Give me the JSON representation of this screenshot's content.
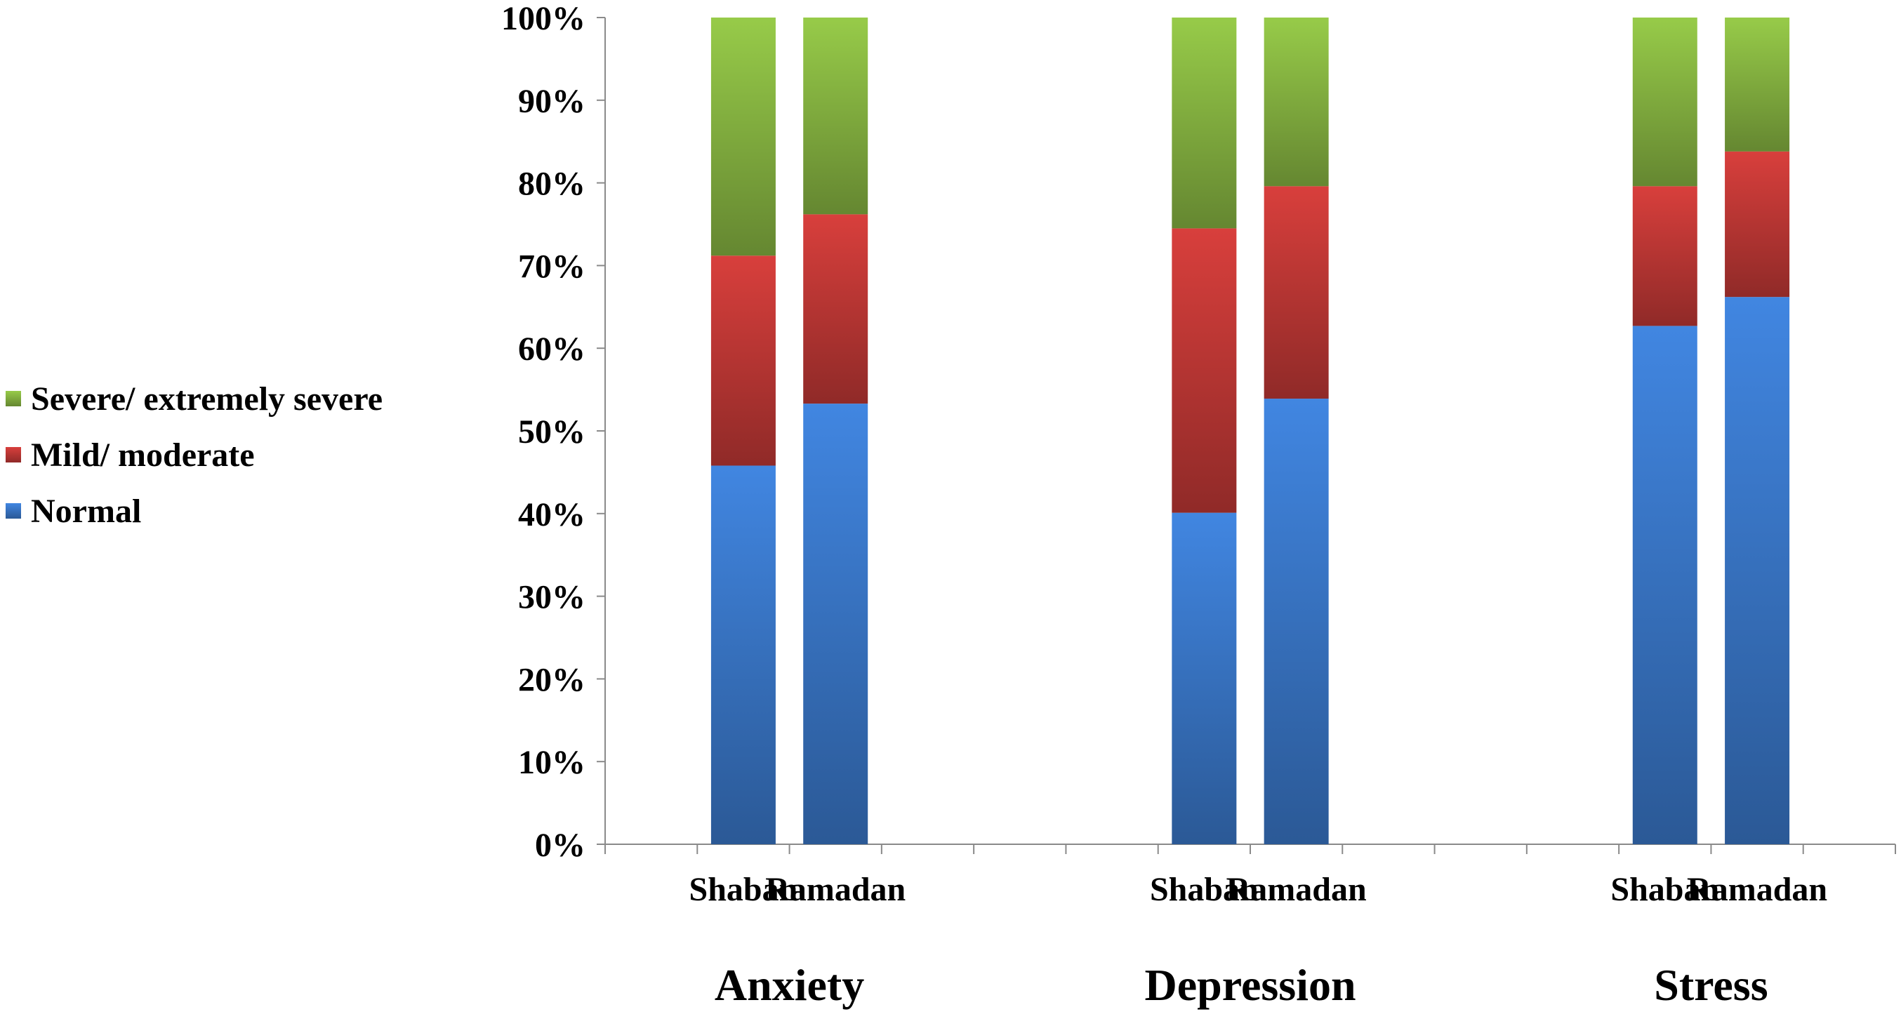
{
  "chart_data": {
    "type": "bar",
    "stacked": true,
    "percent_stacked": true,
    "title": "",
    "xlabel": "",
    "ylabel": "",
    "ylim": [
      0,
      100
    ],
    "y_ticks": [
      "0%",
      "10%",
      "20%",
      "30%",
      "40%",
      "50%",
      "60%",
      "70%",
      "80%",
      "90%",
      "100%"
    ],
    "groups": [
      {
        "name": "Anxiety",
        "categories": [
          "Shaban",
          "Ramadan"
        ]
      },
      {
        "name": "Depression",
        "categories": [
          "Shaban",
          "Ramadan"
        ]
      },
      {
        "name": "Stress",
        "categories": [
          "Shaban",
          "Ramadan"
        ]
      }
    ],
    "series": [
      {
        "name": "Normal",
        "color": "#3c7cd0",
        "values": [
          45.8,
          53.3,
          40.1,
          53.9,
          62.7,
          66.2
        ]
      },
      {
        "name": "Mild/ moderate",
        "color": "#c83a38",
        "values": [
          25.4,
          22.9,
          34.4,
          25.7,
          16.9,
          17.6
        ]
      },
      {
        "name": "Severe/ extremely severe",
        "color": "#8cbc44",
        "values": [
          28.8,
          23.8,
          25.5,
          20.4,
          20.4,
          16.2
        ]
      }
    ],
    "legend": {
      "position": "left",
      "order": [
        "Severe/ extremely severe",
        "Mild/ moderate",
        "Normal"
      ]
    },
    "grid": false
  }
}
